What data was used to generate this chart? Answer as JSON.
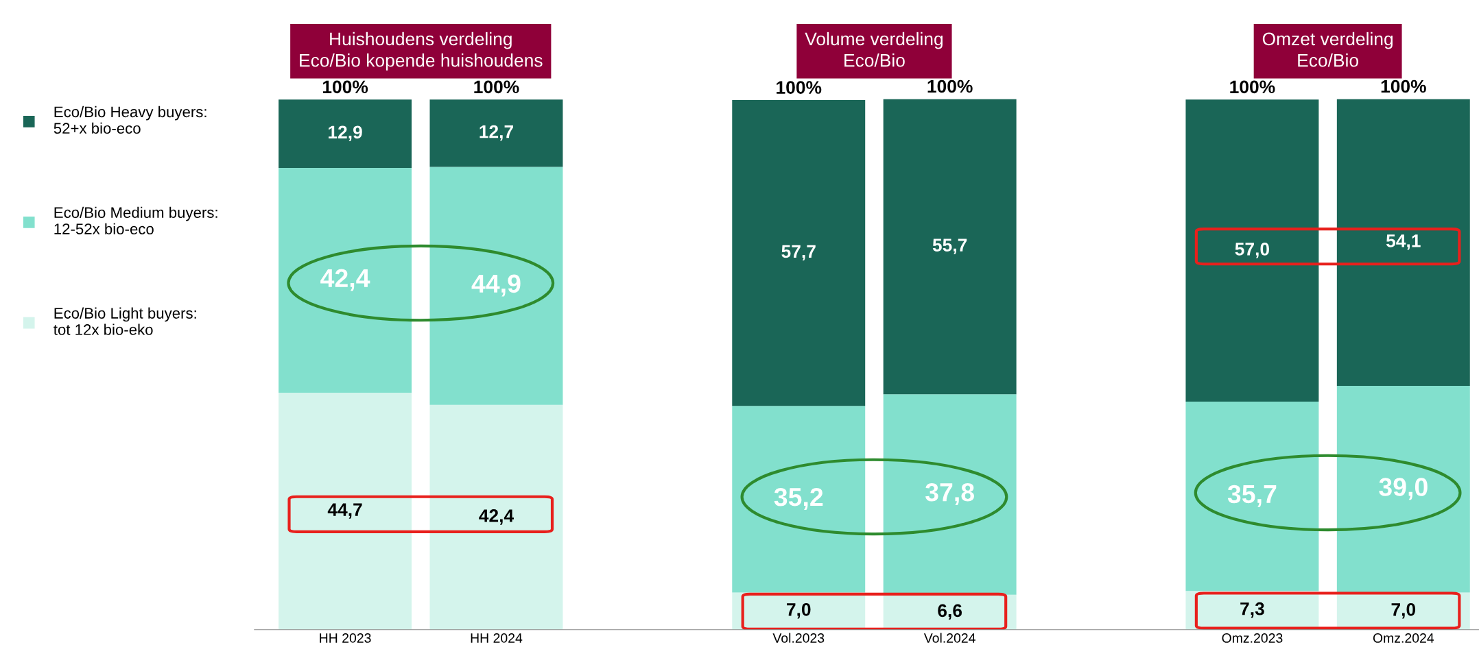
{
  "chart_data": {
    "type": "bar",
    "stacked": true,
    "legend": "left",
    "grid": false,
    "categories": [
      "HH 2023",
      "HH 2024",
      null,
      "Vol.2023",
      "Vol.2024",
      null,
      "Omz.2023",
      "Omz.2024"
    ],
    "series": [
      {
        "name": "Eco/Bio Light buyers:\ntot 12x bio-eko",
        "color": "#d4f4ec",
        "values": [
          44.7,
          42.4,
          null,
          7.0,
          6.6,
          null,
          7.3,
          7.0
        ],
        "value_labels": [
          "44,7",
          "42,4",
          null,
          "7,0",
          "6,6",
          null,
          "7,3",
          "7,0"
        ]
      },
      {
        "name": "Eco/Bio Medium buyers:\n12-52x bio-eco",
        "color": "#82e0cd",
        "values": [
          42.4,
          44.9,
          null,
          35.2,
          37.8,
          null,
          35.7,
          39.0
        ],
        "value_labels": [
          "42,4",
          "44,9",
          null,
          "35,2",
          "37,8",
          null,
          "35,7",
          "39,0"
        ]
      },
      {
        "name": "Eco/Bio Heavy buyers:\n52+x bio-eco",
        "color": "#1a6657",
        "values": [
          12.9,
          12.7,
          null,
          57.7,
          55.7,
          null,
          57.0,
          54.1
        ],
        "value_labels": [
          "12,9",
          "12,7",
          null,
          "57,7",
          "55,7",
          null,
          "57,0",
          "54,1"
        ]
      }
    ],
    "totals": [
      "100%",
      "100%",
      null,
      "100%",
      "100%",
      null,
      "100%",
      "100%"
    ],
    "annotations": [
      "Huishoudens verdeling\nEco/Bio kopende huishoudens",
      "Volume verdeling\nEco/Bio",
      "Omzet verdeling\nEco/Bio"
    ]
  }
}
